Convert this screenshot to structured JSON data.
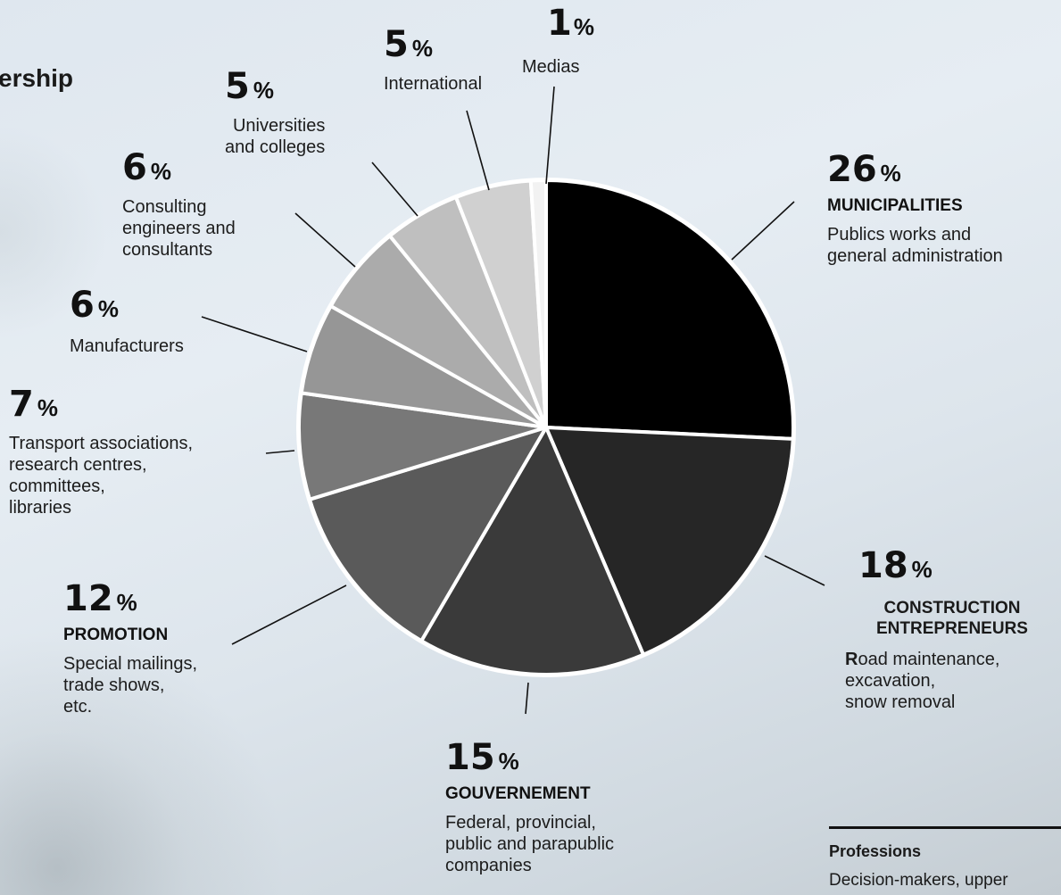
{
  "page": {
    "heading_fragment": "ership",
    "footer": {
      "title": "Professions",
      "text_fragment": "Decision-makers, upper"
    }
  },
  "chart_data": {
    "type": "pie",
    "unit": "%",
    "slices": [
      {
        "value": 26,
        "value_text": "26",
        "category": "MUNICIPALITIES",
        "description": "Publics works and\ngeneral administration",
        "color": "#000000"
      },
      {
        "value": 18,
        "value_text": "18",
        "category": "CONSTRUCTION\nENTREPRENEURS",
        "description_first": "R",
        "description_rest": "oad maintenance,\nexcavation,\nsnow removal",
        "color": "#262626"
      },
      {
        "value": 15,
        "value_text": "15",
        "category": "GOUVERNEMENT",
        "description": "Federal, provincial,\npublic and parapublic\ncompanies",
        "color": "#3a3a3a"
      },
      {
        "value": 12,
        "value_text": "12",
        "category": "PROMOTION",
        "description": "Special mailings,\ntrade shows,\netc.",
        "color": "#5a5a5a"
      },
      {
        "value": 7,
        "value_text": "7",
        "description": "Transport associations,\nresearch centres,\ncommittees,\nlibraries",
        "color": "#787878"
      },
      {
        "value": 6,
        "value_text": "6",
        "description": "Manufacturers",
        "color": "#969696"
      },
      {
        "value": 6,
        "value_text": "6",
        "description": "Consulting\nengineers and\nconsultants",
        "color": "#ababab"
      },
      {
        "value": 5,
        "value_text": "5",
        "description": "Universities\nand colleges",
        "color": "#bfbfbf"
      },
      {
        "value": 5,
        "value_text": "5",
        "description": "International",
        "color": "#d0d0d0"
      },
      {
        "value": 1,
        "value_text": "1",
        "description": "Medias",
        "color": "#f2f2f2"
      }
    ]
  }
}
